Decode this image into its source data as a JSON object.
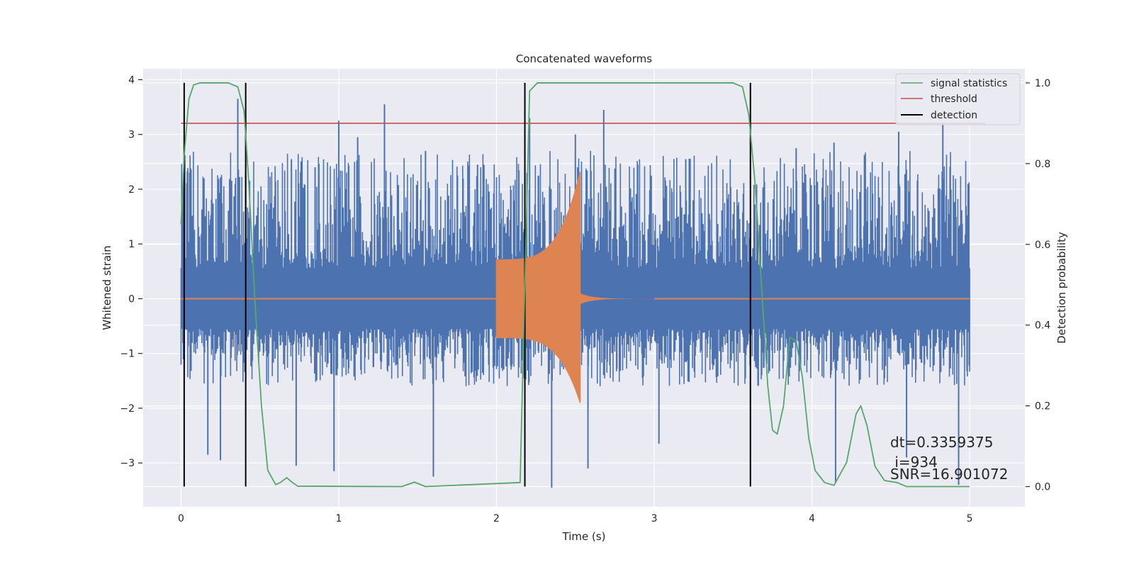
{
  "chart_data": {
    "type": "line",
    "title": "Concatenated waveforms",
    "xlabel": "Time (s)",
    "ylabel": "Whitened strain",
    "ylabel_right": "Detection probability",
    "xlim": [
      -0.24,
      5.35
    ],
    "ylim": [
      -3.8,
      4.2
    ],
    "ylim_right": [
      -0.05,
      1.035
    ],
    "x_ticks": [
      0,
      1,
      2,
      3,
      4,
      5
    ],
    "x_tick_labels": [
      "0",
      "1",
      "2",
      "3",
      "4",
      "5"
    ],
    "y_ticks": [
      -3,
      -2,
      -1,
      0,
      1,
      2,
      3,
      4
    ],
    "y_tick_labels": [
      "−3",
      "−2",
      "−1",
      "0",
      "1",
      "2",
      "3",
      "4"
    ],
    "y_ticks_right": [
      0.0,
      0.2,
      0.4,
      0.6,
      0.8,
      1.0
    ],
    "y_tick_labels_right": [
      "0.0",
      "0.2",
      "0.4",
      "0.6",
      "0.8",
      "1.0"
    ],
    "grid": true,
    "legend_position": "top-right",
    "colors": {
      "background": "#eaeaf2",
      "noise": "#4c72b0",
      "waveform": "#dd8452",
      "signal_statistics": "#55a868",
      "threshold": "#c44e52",
      "detection": "#000000"
    },
    "legend": [
      {
        "label": "signal statistics",
        "color": "#55a868"
      },
      {
        "label": "threshold",
        "color": "#c44e52"
      },
      {
        "label": "detection",
        "color": "#000000"
      }
    ],
    "noise": {
      "x_range": [
        0,
        5
      ],
      "core_amplitude": 0.55,
      "typical_envelope": [
        -1.6,
        2.7
      ],
      "spikes": [
        {
          "x": 0.36,
          "y": 3.65
        },
        {
          "x": 0.41,
          "y": 2.3
        },
        {
          "x": 0.7,
          "y": 2.55
        },
        {
          "x": 0.85,
          "y": 2.4
        },
        {
          "x": 1.0,
          "y": 3.25
        },
        {
          "x": 1.12,
          "y": 2.95
        },
        {
          "x": 1.29,
          "y": 3.55
        },
        {
          "x": 1.55,
          "y": 2.7
        },
        {
          "x": 1.88,
          "y": 2.45
        },
        {
          "x": 2.21,
          "y": 3.3
        },
        {
          "x": 2.5,
          "y": 3.0
        },
        {
          "x": 2.68,
          "y": 3.45
        },
        {
          "x": 3.2,
          "y": 2.55
        },
        {
          "x": 3.9,
          "y": 2.75
        },
        {
          "x": 4.14,
          "y": 2.85
        },
        {
          "x": 4.55,
          "y": 3.05
        },
        {
          "x": 4.83,
          "y": 3.2
        },
        {
          "x": 0.17,
          "y": -2.85
        },
        {
          "x": 0.25,
          "y": -2.95
        },
        {
          "x": 0.73,
          "y": -3.05
        },
        {
          "x": 0.97,
          "y": -3.15
        },
        {
          "x": 1.6,
          "y": -3.25
        },
        {
          "x": 2.35,
          "y": -3.45
        },
        {
          "x": 2.58,
          "y": -3.1
        },
        {
          "x": 3.03,
          "y": -2.65
        },
        {
          "x": 4.15,
          "y": -3.35
        },
        {
          "x": 4.6,
          "y": -2.9
        },
        {
          "x": 4.93,
          "y": -3.4
        }
      ]
    },
    "waveform": {
      "x_range": [
        0,
        5
      ],
      "active_range": [
        2.0,
        2.53
      ],
      "start_amplitude": 0.72,
      "peak_upper": 2.32,
      "peak_lower": -1.9,
      "ringdown_end": 3.0
    },
    "signal_statistics": {
      "x": [
        0.0,
        0.02,
        0.05,
        0.08,
        0.12,
        0.3,
        0.36,
        0.4,
        0.43,
        0.47,
        0.51,
        0.55,
        0.6,
        0.63,
        0.67,
        0.7,
        0.74,
        1.4,
        1.48,
        1.55,
        2.15,
        2.18,
        2.21,
        2.26,
        3.5,
        3.56,
        3.6,
        3.64,
        3.68,
        3.72,
        3.75,
        3.78,
        3.82,
        3.86,
        3.9,
        3.94,
        3.98,
        4.02,
        4.08,
        4.14,
        4.22,
        4.28,
        4.31,
        4.35,
        4.4,
        4.46,
        4.54,
        4.6,
        5.0
      ],
      "y": [
        0.65,
        0.82,
        0.96,
        0.995,
        1.0,
        1.0,
        0.99,
        0.93,
        0.75,
        0.45,
        0.2,
        0.04,
        0.005,
        0.01,
        0.022,
        0.012,
        0.001,
        0.0,
        0.011,
        0.0,
        0.01,
        0.5,
        0.98,
        1.0,
        1.0,
        0.99,
        0.92,
        0.75,
        0.5,
        0.25,
        0.14,
        0.13,
        0.2,
        0.37,
        0.36,
        0.27,
        0.12,
        0.04,
        0.01,
        0.003,
        0.06,
        0.18,
        0.2,
        0.15,
        0.05,
        0.015,
        0.01,
        0.0,
        0.0
      ]
    },
    "threshold": {
      "value": 0.9,
      "x_range": [
        0,
        5.1
      ]
    },
    "detections": [
      0.02,
      0.41,
      2.18,
      3.61
    ],
    "annotations": [
      "dt=0.3359375",
      " i=934",
      "SNR=16.901072"
    ]
  }
}
